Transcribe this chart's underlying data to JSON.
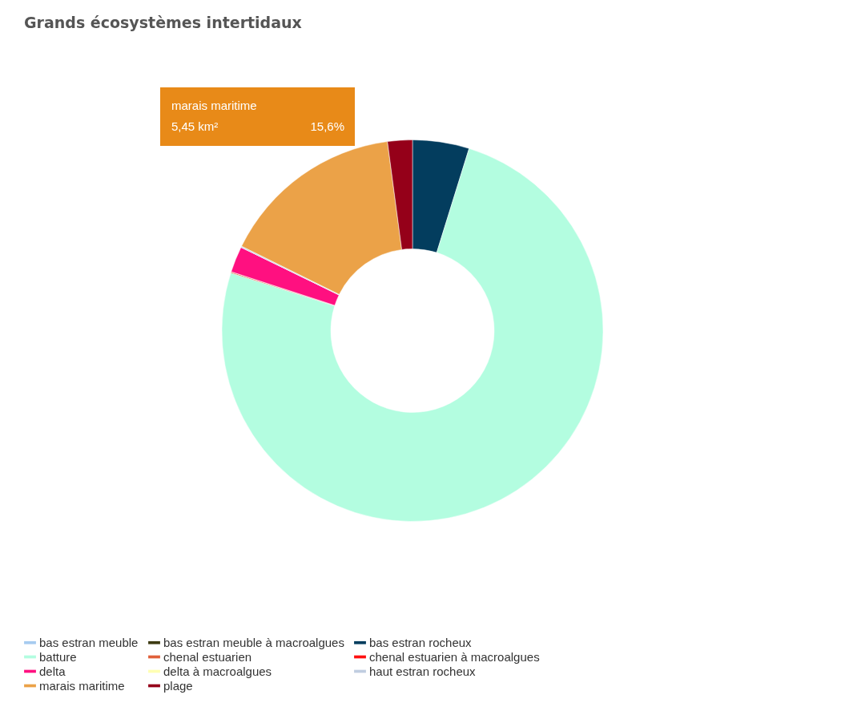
{
  "chart_data": {
    "type": "donut",
    "title": "Grands écosystèmes intertidaux",
    "categories": [
      "bas estran meuble",
      "bas estran meuble à macroalgues",
      "bas estran rocheux",
      "batture",
      "chenal estuarien",
      "chenal estuarien à macroalgues",
      "delta",
      "delta à macroalgues",
      "haut estran rocheux",
      "marais maritime",
      "plage"
    ],
    "values": [
      0,
      0,
      4.8,
      75.1,
      0.1,
      0,
      2.2,
      0,
      0.1,
      15.6,
      2.1
    ],
    "colors": [
      "#a6cbf0",
      "#3d3a12",
      "#033d5e",
      "#b3fde0",
      "#e0603a",
      "#ff1010",
      "#ff1080",
      "#ffffb3",
      "#c0cde0",
      "#eba248",
      "#950019"
    ],
    "annotations": [
      "marais maritime",
      "5,45 km²",
      "15,6%"
    ],
    "legend": "bottom"
  }
}
